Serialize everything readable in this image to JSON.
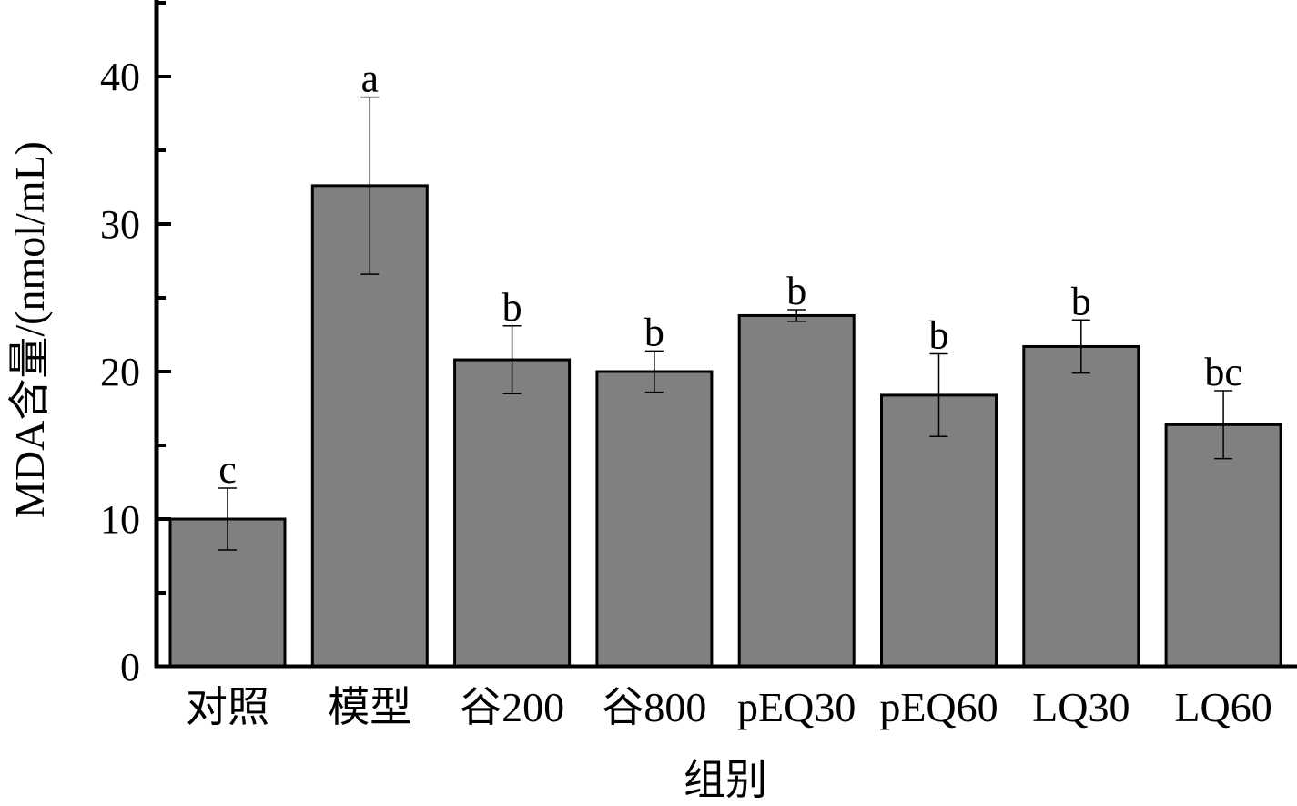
{
  "chart_data": {
    "type": "bar",
    "title": "",
    "xlabel": "组别",
    "ylabel": "MDA含量/(nmol/mL)",
    "ylim": [
      0,
      45
    ],
    "yticks": [
      0,
      10,
      20,
      30,
      40
    ],
    "minor_ticks": [
      5,
      15,
      25,
      35,
      45
    ],
    "grid": false,
    "legend": null,
    "categories": [
      "对照",
      "模型",
      "谷200",
      "谷800",
      "pEQ30",
      "pEQ60",
      "LQ30",
      "LQ60"
    ],
    "values": [
      10.0,
      32.6,
      20.8,
      20.0,
      23.8,
      18.4,
      21.7,
      16.4
    ],
    "error": [
      2.1,
      6.0,
      2.3,
      1.4,
      0.4,
      2.8,
      1.8,
      2.3
    ],
    "significance": [
      "c",
      "a",
      "b",
      "b",
      "b",
      "b",
      "b",
      "bc"
    ],
    "bar_color": "#808080",
    "edge_color": "#000000"
  }
}
